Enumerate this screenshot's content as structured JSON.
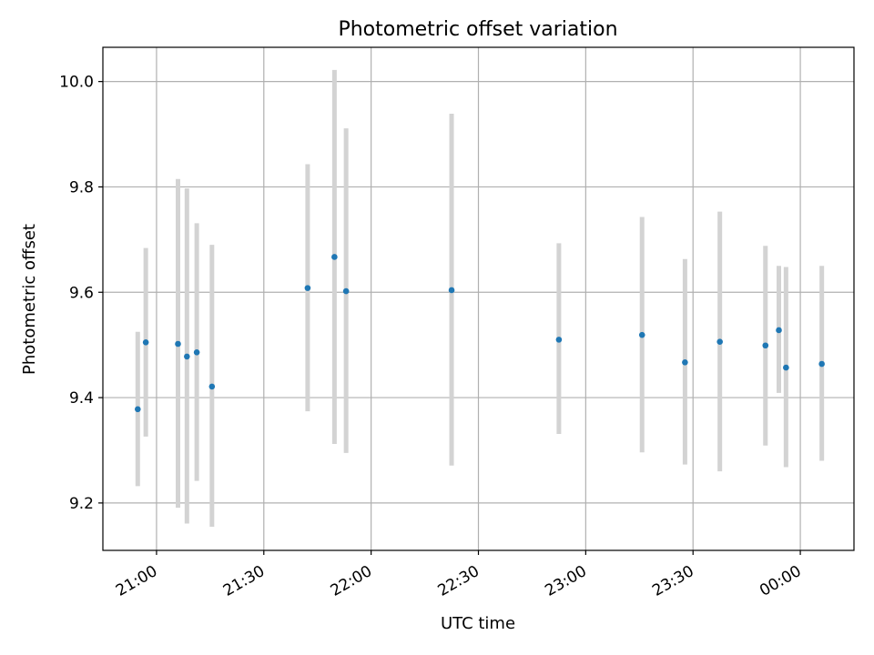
{
  "chart_data": {
    "type": "scatter",
    "title": "Photometric offset variation",
    "xlabel": "UTC time",
    "ylabel": "Photometric offset",
    "x_unit": "time",
    "xlim": [
      "20:45",
      "00:15"
    ],
    "ylim": [
      9.11,
      10.065
    ],
    "xticks": [
      {
        "x": "21:00",
        "label": "21:00"
      },
      {
        "x": "21:30",
        "label": "21:30"
      },
      {
        "x": "22:00",
        "label": "22:00"
      },
      {
        "x": "22:30",
        "label": "22:30"
      },
      {
        "x": "23:00",
        "label": "23:00"
      },
      {
        "x": "23:30",
        "label": "23:30"
      },
      {
        "x": "00:00",
        "label": "00:00"
      }
    ],
    "yticks": [
      {
        "y": 9.2,
        "label": "9.2"
      },
      {
        "y": 9.4,
        "label": "9.4"
      },
      {
        "y": 9.6,
        "label": "9.6"
      },
      {
        "y": 9.8,
        "label": "9.8"
      },
      {
        "y": 10.0,
        "label": "10.0"
      }
    ],
    "grid": true,
    "point_color": "#1f77b4",
    "errorbar_color": "#d3d3d3",
    "points": [
      {
        "x": "20:54:45",
        "y": 9.378,
        "low": 9.232,
        "high": 9.525
      },
      {
        "x": "20:57:00",
        "y": 9.505,
        "low": 9.326,
        "high": 9.684
      },
      {
        "x": "21:06:00",
        "y": 9.502,
        "low": 9.191,
        "high": 9.815
      },
      {
        "x": "21:08:30",
        "y": 9.478,
        "low": 9.161,
        "high": 9.797
      },
      {
        "x": "21:11:15",
        "y": 9.486,
        "low": 9.242,
        "high": 9.731
      },
      {
        "x": "21:15:30",
        "y": 9.421,
        "low": 9.155,
        "high": 9.69
      },
      {
        "x": "21:42:15",
        "y": 9.608,
        "low": 9.374,
        "high": 9.843
      },
      {
        "x": "21:49:45",
        "y": 9.667,
        "low": 9.312,
        "high": 10.022
      },
      {
        "x": "21:53:00",
        "y": 9.602,
        "low": 9.295,
        "high": 9.911
      },
      {
        "x": "22:22:30",
        "y": 9.604,
        "low": 9.271,
        "high": 9.939
      },
      {
        "x": "22:52:30",
        "y": 9.51,
        "low": 9.331,
        "high": 9.693
      },
      {
        "x": "23:15:45",
        "y": 9.519,
        "low": 9.296,
        "high": 9.743
      },
      {
        "x": "23:27:45",
        "y": 9.467,
        "low": 9.273,
        "high": 9.663
      },
      {
        "x": "23:37:30",
        "y": 9.506,
        "low": 9.26,
        "high": 9.753
      },
      {
        "x": "23:50:15",
        "y": 9.499,
        "low": 9.309,
        "high": 9.688
      },
      {
        "x": "23:54:00",
        "y": 9.528,
        "low": 9.409,
        "high": 9.65
      },
      {
        "x": "23:56:00",
        "y": 9.457,
        "low": 9.268,
        "high": 9.648
      },
      {
        "x": "00:06:00",
        "y": 9.464,
        "low": 9.28,
        "high": 9.65
      }
    ]
  }
}
